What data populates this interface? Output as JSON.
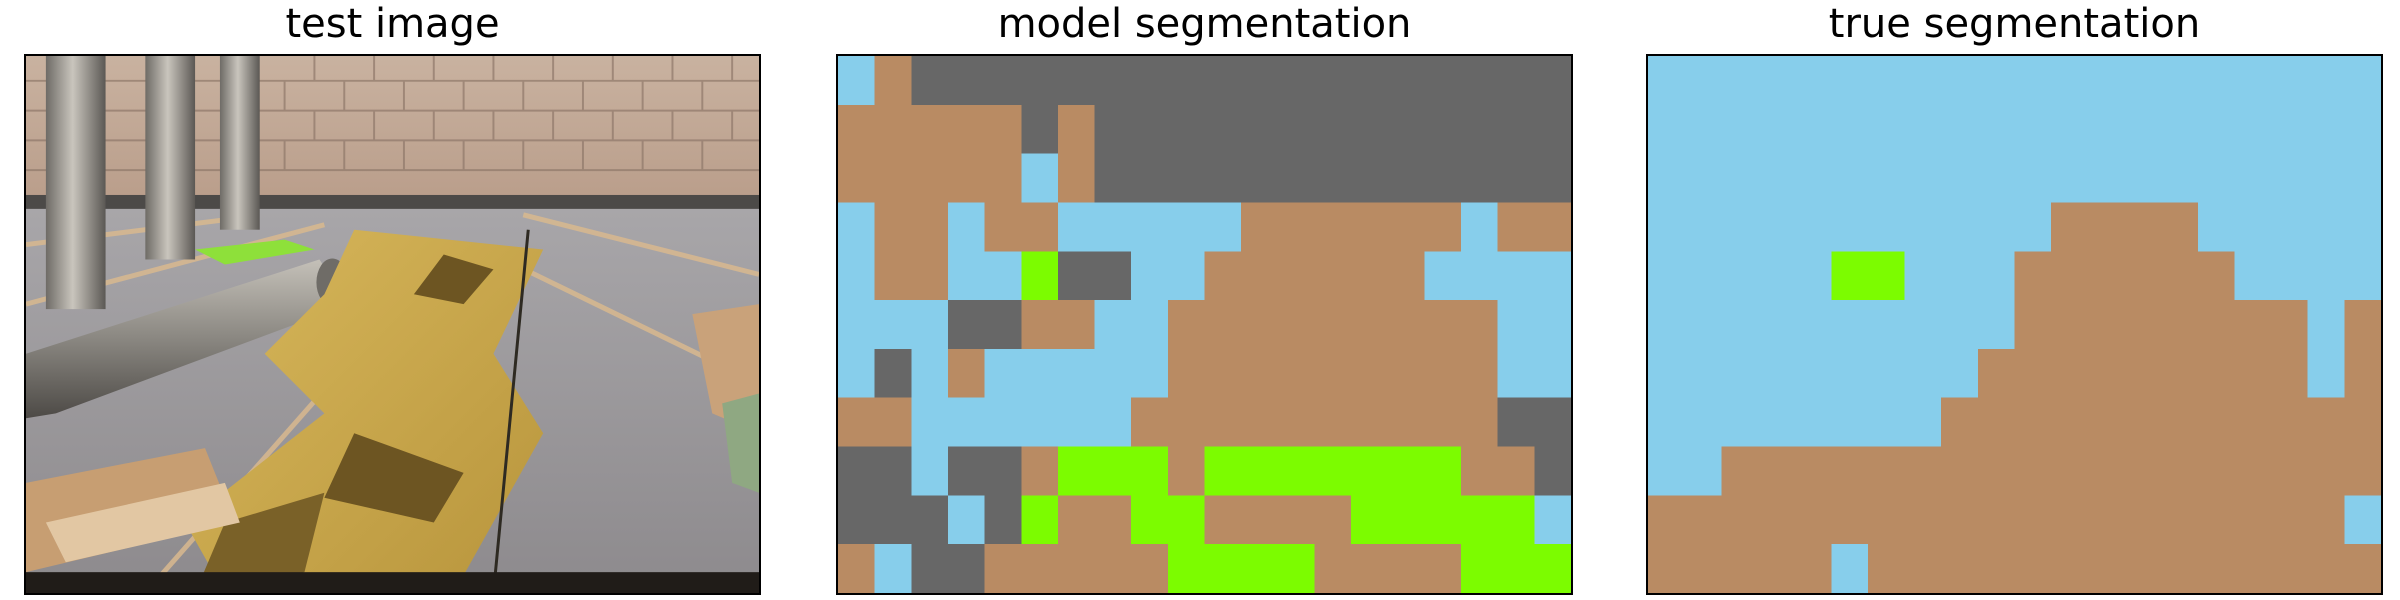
{
  "panels": {
    "test": {
      "title": "test image"
    },
    "model": {
      "title": "model segmentation"
    },
    "true": {
      "title": "true segmentation"
    }
  },
  "class_colors": {
    "1": "#87ceeb",
    "2": "#b98b63",
    "3": "#676767",
    "4": "#7cfc00"
  },
  "model_segmentation": [
    [
      1,
      2,
      3,
      3,
      3,
      3,
      3,
      3,
      3,
      3,
      3,
      3,
      3,
      3,
      3,
      3,
      3,
      3,
      3,
      3
    ],
    [
      2,
      2,
      2,
      2,
      2,
      3,
      2,
      3,
      3,
      3,
      3,
      3,
      3,
      3,
      3,
      3,
      3,
      3,
      3,
      3
    ],
    [
      2,
      2,
      2,
      2,
      2,
      1,
      2,
      3,
      3,
      3,
      3,
      3,
      3,
      3,
      3,
      3,
      3,
      3,
      3,
      3
    ],
    [
      1,
      2,
      2,
      1,
      2,
      2,
      1,
      1,
      1,
      1,
      1,
      2,
      2,
      2,
      2,
      2,
      2,
      1,
      2,
      2
    ],
    [
      1,
      2,
      2,
      1,
      1,
      4,
      3,
      3,
      1,
      1,
      2,
      2,
      2,
      2,
      2,
      2,
      1,
      1,
      1,
      1
    ],
    [
      1,
      1,
      1,
      3,
      3,
      2,
      2,
      1,
      1,
      2,
      2,
      2,
      2,
      2,
      2,
      2,
      2,
      2,
      1,
      1
    ],
    [
      1,
      3,
      1,
      2,
      1,
      1,
      1,
      1,
      1,
      2,
      2,
      2,
      2,
      2,
      2,
      2,
      2,
      2,
      1,
      1
    ],
    [
      2,
      2,
      1,
      1,
      1,
      1,
      1,
      1,
      2,
      2,
      2,
      2,
      2,
      2,
      2,
      2,
      2,
      2,
      3,
      3
    ],
    [
      3,
      3,
      1,
      3,
      3,
      2,
      4,
      4,
      4,
      2,
      4,
      4,
      4,
      4,
      4,
      4,
      4,
      2,
      2,
      3
    ],
    [
      3,
      3,
      3,
      1,
      3,
      4,
      2,
      2,
      4,
      4,
      2,
      2,
      2,
      2,
      4,
      4,
      4,
      4,
      4,
      1
    ],
    [
      2,
      1,
      3,
      3,
      2,
      2,
      2,
      2,
      2,
      4,
      4,
      4,
      4,
      2,
      2,
      2,
      2,
      4,
      4,
      4
    ]
  ],
  "true_segmentation": [
    [
      1,
      1,
      1,
      1,
      1,
      1,
      1,
      1,
      1,
      1,
      1,
      1,
      1,
      1,
      1,
      1,
      1,
      1,
      1,
      1
    ],
    [
      1,
      1,
      1,
      1,
      1,
      1,
      1,
      1,
      1,
      1,
      1,
      1,
      1,
      1,
      1,
      1,
      1,
      1,
      1,
      1
    ],
    [
      1,
      1,
      1,
      1,
      1,
      1,
      1,
      1,
      1,
      1,
      1,
      1,
      1,
      1,
      1,
      1,
      1,
      1,
      1,
      1
    ],
    [
      1,
      1,
      1,
      1,
      1,
      1,
      1,
      1,
      1,
      1,
      1,
      2,
      2,
      2,
      2,
      1,
      1,
      1,
      1,
      1
    ],
    [
      1,
      1,
      1,
      1,
      1,
      4,
      4,
      1,
      1,
      1,
      2,
      2,
      2,
      2,
      2,
      2,
      1,
      1,
      1,
      1
    ],
    [
      1,
      1,
      1,
      1,
      1,
      1,
      1,
      1,
      1,
      1,
      2,
      2,
      2,
      2,
      2,
      2,
      2,
      2,
      1,
      2
    ],
    [
      1,
      1,
      1,
      1,
      1,
      1,
      1,
      1,
      1,
      2,
      2,
      2,
      2,
      2,
      2,
      2,
      2,
      2,
      1,
      2
    ],
    [
      1,
      1,
      1,
      1,
      1,
      1,
      1,
      1,
      2,
      2,
      2,
      2,
      2,
      2,
      2,
      2,
      2,
      2,
      2,
      2
    ],
    [
      1,
      1,
      2,
      2,
      2,
      2,
      2,
      2,
      2,
      2,
      2,
      2,
      2,
      2,
      2,
      2,
      2,
      2,
      2,
      2
    ],
    [
      2,
      2,
      2,
      2,
      2,
      2,
      2,
      2,
      2,
      2,
      2,
      2,
      2,
      2,
      2,
      2,
      2,
      2,
      2,
      1
    ],
    [
      2,
      2,
      2,
      2,
      2,
      1,
      2,
      2,
      2,
      2,
      2,
      2,
      2,
      2,
      2,
      2,
      2,
      2,
      2,
      2
    ]
  ]
}
